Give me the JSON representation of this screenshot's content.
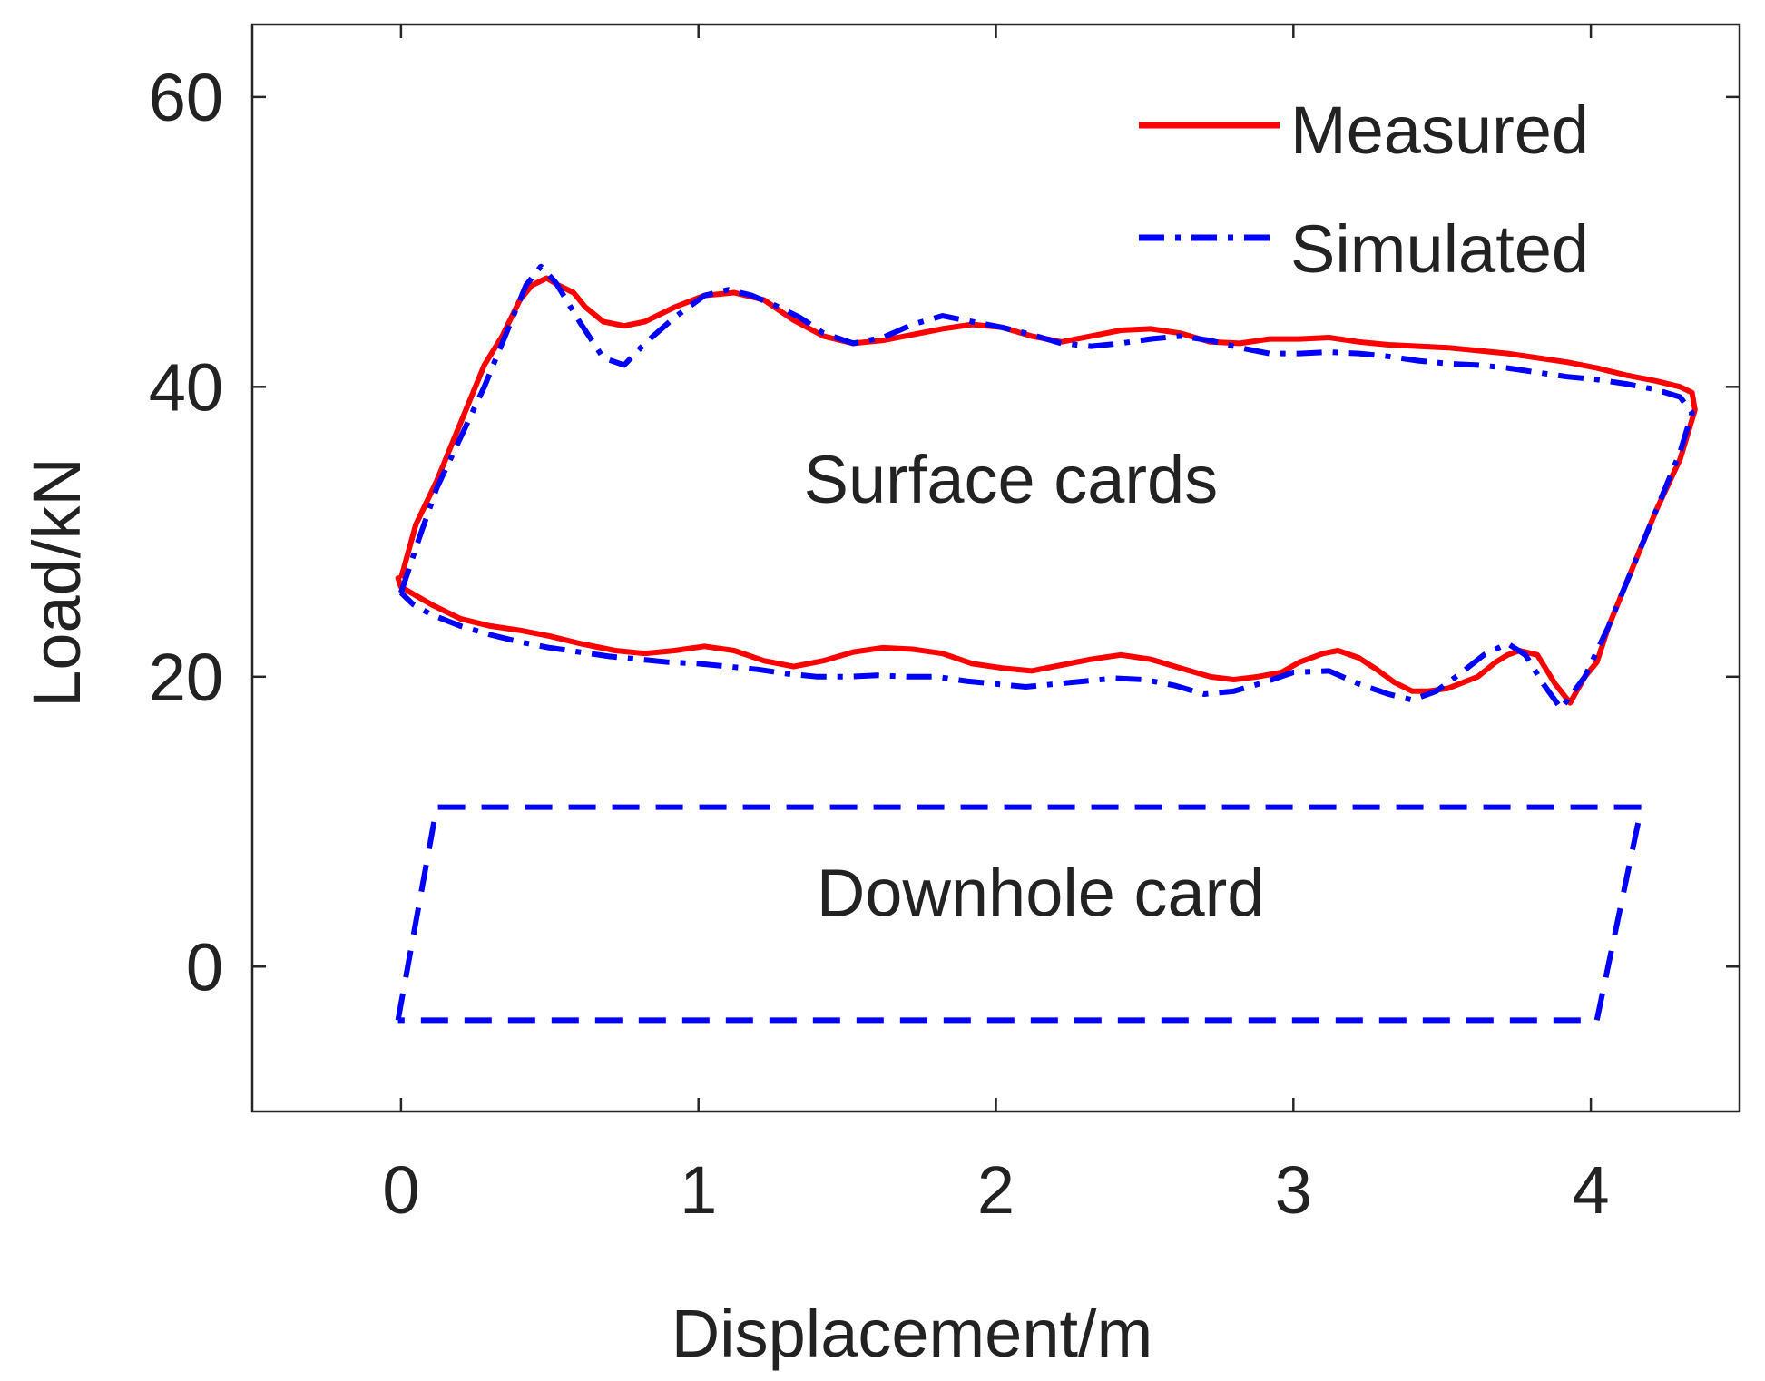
{
  "chart_data": {
    "type": "line",
    "title": "",
    "xlabel": "Displacement/m",
    "ylabel": "Load/kN",
    "xlim": [
      -0.5,
      4.5
    ],
    "ylim": [
      -10,
      65
    ],
    "xticks": [
      0,
      1,
      2,
      3,
      4
    ],
    "yticks": [
      0,
      20,
      40,
      60
    ],
    "x_tick_labels": [
      "0",
      "1",
      "2",
      "3",
      "4"
    ],
    "y_tick_labels": [
      "0",
      "20",
      "40",
      "60"
    ],
    "grid": false,
    "legend": {
      "location": "top-right",
      "entries": [
        "Measured",
        "Simulated"
      ]
    },
    "annotations": [
      {
        "text": "Surface cards",
        "x": 2.05,
        "y": 32.0
      },
      {
        "text": "Downhole card",
        "x": 2.15,
        "y": 3.5
      }
    ],
    "series": [
      {
        "name": "Measured",
        "color": "#ff0000",
        "style": "solid",
        "x": [
          0.0,
          0.05,
          0.12,
          0.18,
          0.24,
          0.28,
          0.34,
          0.4,
          0.44,
          0.49,
          0.53,
          0.58,
          0.62,
          0.68,
          0.75,
          0.82,
          0.92,
          1.02,
          1.12,
          1.22,
          1.32,
          1.42,
          1.52,
          1.62,
          1.72,
          1.82,
          1.92,
          2.02,
          2.12,
          2.22,
          2.32,
          2.42,
          2.52,
          2.62,
          2.72,
          2.82,
          2.92,
          3.02,
          3.12,
          3.22,
          3.32,
          3.42,
          3.52,
          3.62,
          3.72,
          3.82,
          3.92,
          4.02,
          4.12,
          4.22,
          4.3,
          4.34,
          4.35,
          4.3,
          4.22,
          4.14,
          4.06,
          4.02,
          3.98,
          3.93,
          3.88,
          3.82,
          3.76,
          3.72,
          3.68,
          3.62,
          3.52,
          3.45,
          3.4,
          3.34,
          3.28,
          3.22,
          3.15,
          3.1,
          3.02,
          2.96,
          2.88,
          2.8,
          2.72,
          2.62,
          2.52,
          2.42,
          2.32,
          2.22,
          2.12,
          2.02,
          1.92,
          1.82,
          1.72,
          1.62,
          1.52,
          1.42,
          1.32,
          1.22,
          1.12,
          1.02,
          0.92,
          0.82,
          0.72,
          0.6,
          0.5,
          0.4,
          0.3,
          0.2,
          0.1,
          0.0,
          -0.01,
          0.0
        ],
        "y": [
          26.8,
          30.5,
          33.5,
          36.5,
          39.5,
          41.5,
          43.5,
          46.0,
          47.0,
          47.5,
          47.0,
          46.5,
          45.5,
          44.5,
          44.2,
          44.5,
          45.5,
          46.3,
          46.5,
          46.0,
          44.6,
          43.5,
          43.0,
          43.2,
          43.6,
          44.0,
          44.3,
          44.1,
          43.5,
          43.1,
          43.5,
          43.9,
          44.0,
          43.7,
          43.1,
          43.0,
          43.3,
          43.3,
          43.4,
          43.1,
          42.9,
          42.8,
          42.7,
          42.5,
          42.3,
          42.0,
          41.7,
          41.3,
          40.8,
          40.4,
          40.0,
          39.6,
          38.4,
          35.0,
          31.5,
          27.5,
          23.5,
          21.0,
          20.0,
          18.2,
          19.5,
          21.5,
          21.8,
          21.5,
          21.0,
          20.0,
          19.2,
          19.0,
          19.0,
          19.6,
          20.5,
          21.3,
          21.8,
          21.6,
          21.0,
          20.3,
          20.0,
          19.8,
          20.0,
          20.6,
          21.2,
          21.5,
          21.2,
          20.8,
          20.4,
          20.6,
          20.9,
          21.6,
          21.9,
          22.0,
          21.7,
          21.1,
          20.7,
          21.1,
          21.8,
          22.1,
          21.8,
          21.6,
          21.8,
          22.3,
          22.8,
          23.2,
          23.5,
          24.0,
          25.0,
          26.2,
          26.8,
          26.8
        ]
      },
      {
        "name": "Simulated",
        "color": "#0000ff",
        "style": "dash-dot",
        "x": [
          0.0,
          0.06,
          0.12,
          0.2,
          0.28,
          0.36,
          0.42,
          0.47,
          0.52,
          0.6,
          0.68,
          0.75,
          0.82,
          0.92,
          1.02,
          1.1,
          1.18,
          1.26,
          1.34,
          1.42,
          1.52,
          1.62,
          1.72,
          1.82,
          1.92,
          2.02,
          2.12,
          2.22,
          2.32,
          2.42,
          2.52,
          2.62,
          2.72,
          2.82,
          2.92,
          3.02,
          3.12,
          3.22,
          3.32,
          3.42,
          3.52,
          3.62,
          3.72,
          3.82,
          3.92,
          4.02,
          4.12,
          4.22,
          4.3,
          4.34,
          4.3,
          4.22,
          4.14,
          4.06,
          3.98,
          3.9,
          3.84,
          3.78,
          3.72,
          3.64,
          3.56,
          3.48,
          3.4,
          3.32,
          3.22,
          3.12,
          3.0,
          2.9,
          2.8,
          2.7,
          2.6,
          2.5,
          2.4,
          2.3,
          2.2,
          2.1,
          2.0,
          1.9,
          1.8,
          1.7,
          1.6,
          1.5,
          1.4,
          1.3,
          1.2,
          1.1,
          1.0,
          0.9,
          0.8,
          0.7,
          0.6,
          0.5,
          0.4,
          0.3,
          0.2,
          0.1,
          0.04,
          0.0
        ],
        "y": [
          25.8,
          29.5,
          33.0,
          36.5,
          40.0,
          44.0,
          47.0,
          48.3,
          47.2,
          44.5,
          42.0,
          41.5,
          43.0,
          44.8,
          46.3,
          46.7,
          46.3,
          45.6,
          44.8,
          43.7,
          43.0,
          43.4,
          44.3,
          44.9,
          44.5,
          44.1,
          43.6,
          43.0,
          42.8,
          43.0,
          43.3,
          43.5,
          43.2,
          42.7,
          42.3,
          42.3,
          42.4,
          42.3,
          42.1,
          41.8,
          41.6,
          41.5,
          41.3,
          41.0,
          40.7,
          40.5,
          40.2,
          39.8,
          39.3,
          38.2,
          35.5,
          31.5,
          27.5,
          23.5,
          20.0,
          17.8,
          19.5,
          21.5,
          22.3,
          21.5,
          20.2,
          19.0,
          18.4,
          18.8,
          19.5,
          20.4,
          20.3,
          19.6,
          19.0,
          18.8,
          19.4,
          19.8,
          19.9,
          19.7,
          19.5,
          19.3,
          19.5,
          19.7,
          20.0,
          20.0,
          20.1,
          20.0,
          20.0,
          20.2,
          20.5,
          20.7,
          20.9,
          21.0,
          21.2,
          21.4,
          21.7,
          22.0,
          22.4,
          22.9,
          23.5,
          24.3,
          25.0,
          25.8
        ]
      },
      {
        "name": "Downhole card",
        "color": "#0000ff",
        "style": "dashed",
        "legend": false,
        "x": [
          -0.01,
          0.12,
          4.17,
          4.02,
          -0.01
        ],
        "y": [
          -3.7,
          11.0,
          11.0,
          -3.7,
          -3.7
        ]
      }
    ]
  }
}
